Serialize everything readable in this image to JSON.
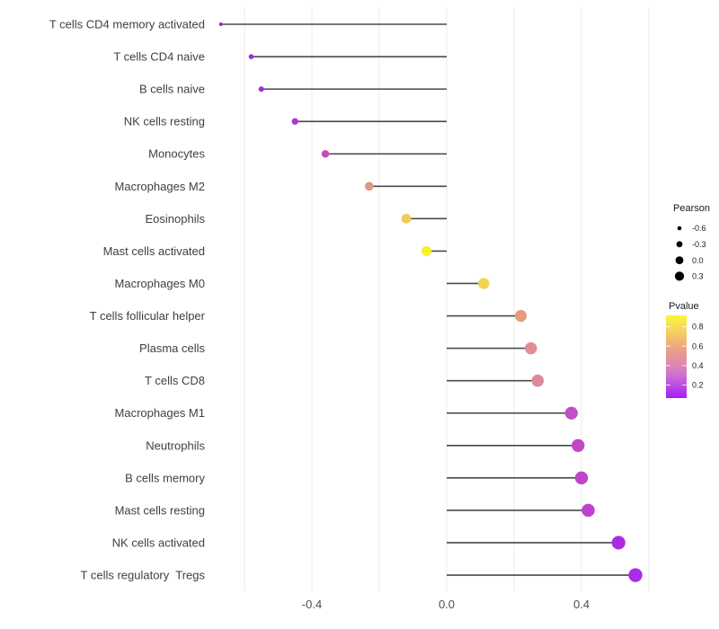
{
  "chart_data": {
    "type": "scatter",
    "variant": "lollipop",
    "orientation": "horizontal",
    "title": "",
    "xlabel": "",
    "ylabel": "",
    "baseline": 0.0,
    "x_axis": {
      "tick_values": [
        -0.4,
        0.0,
        0.4
      ],
      "tick_labels": [
        "-0.4",
        "0.0",
        "0.4"
      ],
      "gridline_values": [
        -0.6,
        -0.4,
        -0.2,
        0.0,
        0.2,
        0.4,
        0.6
      ],
      "range": [
        -0.695,
        0.615
      ]
    },
    "points": [
      {
        "label": "T cells CD4 memory activated",
        "pearson": -0.67,
        "pvalue": 0.06,
        "color": "#8E26D9"
      },
      {
        "label": "T cells CD4 naive",
        "pearson": -0.58,
        "pvalue": 0.1,
        "color": "#9D2CDB"
      },
      {
        "label": "B cells naive",
        "pearson": -0.55,
        "pvalue": 0.12,
        "color": "#A22EDA"
      },
      {
        "label": "NK cells resting",
        "pearson": -0.45,
        "pvalue": 0.19,
        "color": "#AC38D8"
      },
      {
        "label": "Monocytes",
        "pearson": -0.36,
        "pvalue": 0.33,
        "color": "#C74EB9"
      },
      {
        "label": "Macrophages M2",
        "pearson": -0.23,
        "pvalue": 0.55,
        "color": "#E0988B"
      },
      {
        "label": "Eosinophils",
        "pearson": -0.12,
        "pvalue": 0.76,
        "color": "#EFCB5C"
      },
      {
        "label": "Mast cells activated",
        "pearson": -0.06,
        "pvalue": 0.89,
        "color": "#F6F02F"
      },
      {
        "label": "Macrophages M0",
        "pearson": 0.11,
        "pvalue": 0.78,
        "color": "#F1D44E"
      },
      {
        "label": "T cells follicular helper",
        "pearson": 0.22,
        "pvalue": 0.57,
        "color": "#E69B7D"
      },
      {
        "label": "Plasma cells",
        "pearson": 0.25,
        "pvalue": 0.5,
        "color": "#E18D92"
      },
      {
        "label": "T cells CD8",
        "pearson": 0.27,
        "pvalue": 0.47,
        "color": "#DD8A9B"
      },
      {
        "label": "Macrophages M1",
        "pearson": 0.37,
        "pvalue": 0.3,
        "color": "#C44EC5"
      },
      {
        "label": "Neutrophils",
        "pearson": 0.39,
        "pvalue": 0.29,
        "color": "#C246C9"
      },
      {
        "label": "B cells memory",
        "pearson": 0.4,
        "pvalue": 0.28,
        "color": "#C145C9"
      },
      {
        "label": "Mast cells resting",
        "pearson": 0.42,
        "pvalue": 0.26,
        "color": "#BE41CD"
      },
      {
        "label": "NK cells activated",
        "pearson": 0.51,
        "pvalue": 0.12,
        "color": "#AB2BE2"
      },
      {
        "label": "T cells regulatory  Tregs",
        "pearson": 0.56,
        "pvalue": 0.08,
        "color": "#A92CE8"
      }
    ],
    "legend_size": {
      "title": "Pearson",
      "labels": [
        "-0.6",
        "-0.3",
        "0.0",
        "0.3"
      ],
      "values": [
        -0.6,
        -0.3,
        0.0,
        0.3
      ],
      "dot_color": "#000000"
    },
    "legend_color": {
      "title": "Pvalue",
      "tick_labels": [
        "0.8",
        "0.6",
        "0.4",
        "0.2"
      ],
      "tick_values": [
        0.8,
        0.6,
        0.4,
        0.2
      ],
      "gradient_stops": [
        [
          "0.00",
          "#A51FF5"
        ],
        [
          "0.15",
          "#BC4AE3"
        ],
        [
          "0.30",
          "#D077CC"
        ],
        [
          "0.42",
          "#DE8BAD"
        ],
        [
          "0.55",
          "#E89A8C"
        ],
        [
          "0.68",
          "#F0B477"
        ],
        [
          "0.82",
          "#F6D45F"
        ],
        [
          "1.00",
          "#FCF53A"
        ]
      ]
    }
  },
  "style": {
    "background": "#ffffff",
    "grid_color": "#ebebeb",
    "stem_color": "#4a4a4a",
    "axis_text_color": "#4d4d4d",
    "category_text_color": "#404040"
  }
}
